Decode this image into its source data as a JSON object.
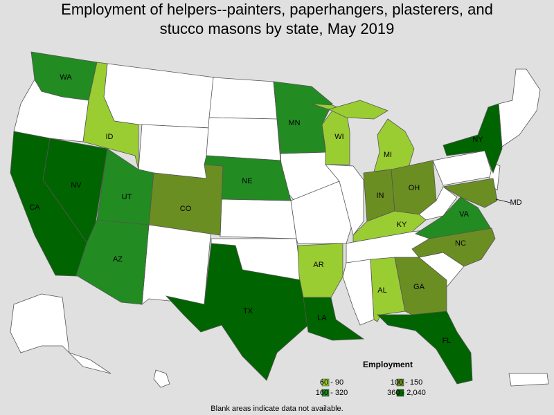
{
  "title": "Employment of helpers--painters, paperhangers, plasterers, and stucco masons by state, May 2019",
  "legend": {
    "title": "Employment",
    "items": [
      {
        "label": "60 - 90",
        "color": "#9acd32"
      },
      {
        "label": "100 - 150",
        "color": "#6b8e23"
      },
      {
        "label": "160 - 320",
        "color": "#228b22"
      },
      {
        "label": "360 - 2,040",
        "color": "#006400"
      }
    ]
  },
  "states": [
    {
      "label": "WA",
      "color": "#228b22"
    },
    {
      "label": "ID",
      "color": "#9acd32"
    },
    {
      "label": "MN",
      "color": "#228b22"
    },
    {
      "label": "WI",
      "color": "#9acd32"
    },
    {
      "label": "MI",
      "color": "#9acd32"
    },
    {
      "label": "NY",
      "color": "#006400"
    },
    {
      "label": "NV",
      "color": "#006400"
    },
    {
      "label": "CA",
      "color": "#006400"
    },
    {
      "label": "UT",
      "color": "#228b22"
    },
    {
      "label": "CO",
      "color": "#6b8e23"
    },
    {
      "label": "NE",
      "color": "#228b22"
    },
    {
      "label": "IN",
      "color": "#6b8e23"
    },
    {
      "label": "OH",
      "color": "#6b8e23"
    },
    {
      "label": "KY",
      "color": "#9acd32"
    },
    {
      "label": "VA",
      "color": "#228b22"
    },
    {
      "label": "MD",
      "color": "#6b8e23"
    },
    {
      "label": "NC",
      "color": "#6b8e23"
    },
    {
      "label": "AZ",
      "color": "#228b22"
    },
    {
      "label": "TX",
      "color": "#006400"
    },
    {
      "label": "AR",
      "color": "#9acd32"
    },
    {
      "label": "AL",
      "color": "#9acd32"
    },
    {
      "label": "GA",
      "color": "#6b8e23"
    },
    {
      "label": "LA",
      "color": "#006400"
    },
    {
      "label": "FL",
      "color": "#006400"
    }
  ],
  "note": "Blank areas indicate data not available."
}
